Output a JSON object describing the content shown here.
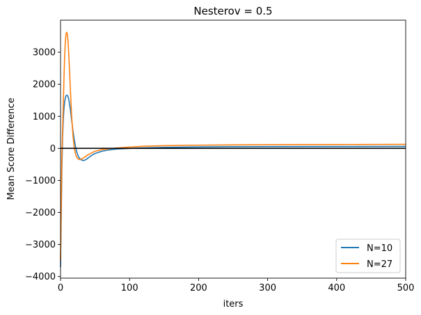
{
  "chart_data": {
    "type": "line",
    "title": "Nesterov = 0.5",
    "xlabel": "iters",
    "ylabel": "Mean Score Difference",
    "xlim": [
      0,
      500
    ],
    "ylim": [
      -4050,
      4000
    ],
    "xticks": [
      0,
      100,
      200,
      300,
      400,
      500
    ],
    "xtick_labels": [
      "0",
      "100",
      "200",
      "300",
      "400",
      "500"
    ],
    "yticks": [
      -4000,
      -3000,
      -2000,
      -1000,
      0,
      1000,
      2000,
      3000
    ],
    "ytick_labels": [
      "−4000",
      "−3000",
      "−2000",
      "−1000",
      "0",
      "1000",
      "2000",
      "3000"
    ],
    "hline": {
      "y": 0,
      "color": "#000000"
    },
    "legend_position": "lower-right",
    "series": [
      {
        "name": "N=10",
        "color": "#1f77b4",
        "x": [
          0,
          1,
          2,
          3,
          4,
          5,
          6,
          7,
          8,
          9,
          10,
          11,
          12,
          14,
          16,
          18,
          20,
          22,
          24,
          26,
          28,
          30,
          33,
          36,
          40,
          45,
          50,
          60,
          70,
          80,
          100,
          120,
          150,
          200,
          250,
          300,
          400,
          500
        ],
        "y": [
          -3700,
          -2100,
          -600,
          350,
          900,
          1250,
          1450,
          1580,
          1640,
          1660,
          1650,
          1600,
          1520,
          1250,
          900,
          550,
          250,
          20,
          -150,
          -260,
          -320,
          -360,
          -380,
          -360,
          -300,
          -220,
          -160,
          -90,
          -50,
          -25,
          0,
          15,
          30,
          45,
          52,
          56,
          58,
          60
        ]
      },
      {
        "name": "N=27",
        "color": "#ff7f0e",
        "x": [
          0,
          1,
          2,
          3,
          4,
          5,
          6,
          7,
          8,
          9,
          10,
          11,
          12,
          13,
          14,
          16,
          18,
          20,
          22,
          24,
          26,
          28,
          30,
          33,
          36,
          40,
          45,
          50,
          60,
          70,
          80,
          100,
          120,
          150,
          200,
          250,
          300,
          400,
          500
        ],
        "y": [
          -3500,
          -1800,
          -200,
          600,
          1400,
          2200,
          2900,
          3350,
          3580,
          3620,
          3550,
          3300,
          2900,
          2450,
          1950,
          1050,
          400,
          0,
          -200,
          -300,
          -340,
          -350,
          -340,
          -300,
          -260,
          -200,
          -140,
          -90,
          -40,
          -10,
          10,
          40,
          65,
          85,
          100,
          110,
          115,
          120,
          125
        ]
      }
    ]
  }
}
